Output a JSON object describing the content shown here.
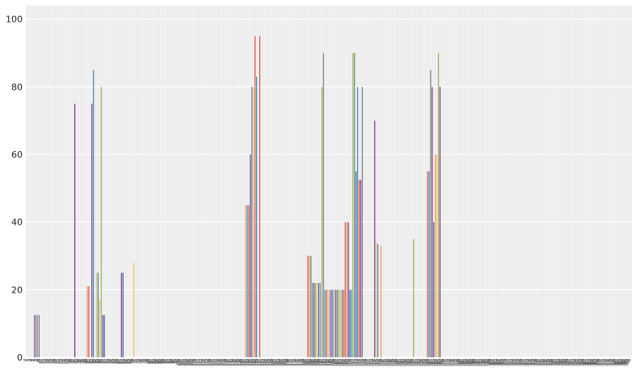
{
  "chart_data": {
    "type": "bar",
    "ylim": [
      0,
      104
    ],
    "yticks": [
      0,
      20,
      40,
      60,
      80,
      100
    ],
    "grid": true,
    "n_categories": 390,
    "colors": [
      "#e24a33",
      "#348abd",
      "#988ed5",
      "#777777",
      "#fbc15e",
      "#8eba42",
      "#ffb5b8",
      "#7b2a87",
      "#2e5aa8",
      "#f09a50"
    ],
    "bars": [
      {
        "x": 5,
        "value": 12.5,
        "color": "#348abd"
      },
      {
        "x": 6,
        "value": 12.5,
        "color": "#e24a33"
      },
      {
        "x": 7,
        "value": 12.5,
        "color": "#988ed5"
      },
      {
        "x": 8,
        "value": 12.5,
        "color": "#777777"
      },
      {
        "x": 31,
        "value": 75,
        "color": "#7b2a87"
      },
      {
        "x": 39,
        "value": 21,
        "color": "#f09a50"
      },
      {
        "x": 40,
        "value": 21,
        "color": "#e24a33"
      },
      {
        "x": 42,
        "value": 75,
        "color": "#7b2a87"
      },
      {
        "x": 43,
        "value": 85,
        "color": "#348abd"
      },
      {
        "x": 45,
        "value": 25,
        "color": "#fbc15e"
      },
      {
        "x": 46,
        "value": 25,
        "color": "#348abd"
      },
      {
        "x": 47,
        "value": 17,
        "color": "#fbc15e"
      },
      {
        "x": 48,
        "value": 80,
        "color": "#8eba42"
      },
      {
        "x": 49,
        "value": 12.5,
        "color": "#7b2a87"
      },
      {
        "x": 50,
        "value": 12.5,
        "color": "#2e5aa8"
      },
      {
        "x": 61,
        "value": 25,
        "color": "#7b2a87"
      },
      {
        "x": 62,
        "value": 25,
        "color": "#2e5aa8"
      },
      {
        "x": 69,
        "value": 28,
        "color": "#fbc15e"
      },
      {
        "x": 141,
        "value": 45,
        "color": "#f09a50"
      },
      {
        "x": 142,
        "value": 45,
        "color": "#348abd"
      },
      {
        "x": 143,
        "value": 45,
        "color": "#e24a33"
      },
      {
        "x": 144,
        "value": 60,
        "color": "#7b2a87"
      },
      {
        "x": 145,
        "value": 80,
        "color": "#348abd"
      },
      {
        "x": 146,
        "value": 80,
        "color": "#fbc15e"
      },
      {
        "x": 147,
        "value": 95,
        "color": "#e24a33"
      },
      {
        "x": 148,
        "value": 83,
        "color": "#348abd"
      },
      {
        "x": 150,
        "value": 95,
        "color": "#e24a33"
      },
      {
        "x": 181,
        "value": 30,
        "color": "#e24a33"
      },
      {
        "x": 182,
        "value": 30,
        "color": "#f09a50"
      },
      {
        "x": 183,
        "value": 30,
        "color": "#777777"
      },
      {
        "x": 184,
        "value": 22,
        "color": "#348abd"
      },
      {
        "x": 185,
        "value": 22,
        "color": "#7b2a87"
      },
      {
        "x": 186,
        "value": 22,
        "color": "#8eba42"
      },
      {
        "x": 187,
        "value": 22,
        "color": "#fbc15e"
      },
      {
        "x": 188,
        "value": 22,
        "color": "#2e5aa8"
      },
      {
        "x": 189,
        "value": 22,
        "color": "#988ed5"
      },
      {
        "x": 190,
        "value": 80,
        "color": "#8eba42"
      },
      {
        "x": 191,
        "value": 90,
        "color": "#777777"
      },
      {
        "x": 192,
        "value": 20,
        "color": "#348abd"
      },
      {
        "x": 193,
        "value": 20,
        "color": "#e24a33"
      },
      {
        "x": 194,
        "value": 20,
        "color": "#fbc15e"
      },
      {
        "x": 195,
        "value": 20,
        "color": "#988ed5"
      },
      {
        "x": 196,
        "value": 20,
        "color": "#7b2a87"
      },
      {
        "x": 197,
        "value": 20,
        "color": "#348abd"
      },
      {
        "x": 198,
        "value": 20,
        "color": "#f09a50"
      },
      {
        "x": 199,
        "value": 20,
        "color": "#2e5aa8"
      },
      {
        "x": 200,
        "value": 20,
        "color": "#777777"
      },
      {
        "x": 201,
        "value": 20,
        "color": "#8eba42"
      },
      {
        "x": 202,
        "value": 20,
        "color": "#fbc15e"
      },
      {
        "x": 203,
        "value": 20,
        "color": "#348abd"
      },
      {
        "x": 204,
        "value": 20,
        "color": "#e24a33"
      },
      {
        "x": 205,
        "value": 40,
        "color": "#e24a33"
      },
      {
        "x": 206,
        "value": 40,
        "color": "#f09a50"
      },
      {
        "x": 207,
        "value": 40,
        "color": "#7b2a87"
      },
      {
        "x": 208,
        "value": 20,
        "color": "#2e5aa8"
      },
      {
        "x": 209,
        "value": 20,
        "color": "#348abd"
      },
      {
        "x": 210,
        "value": 90,
        "color": "#8eba42"
      },
      {
        "x": 211,
        "value": 90,
        "color": "#777777"
      },
      {
        "x": 212,
        "value": 55,
        "color": "#2e5aa8"
      },
      {
        "x": 213,
        "value": 80,
        "color": "#348abd"
      },
      {
        "x": 214,
        "value": 52.5,
        "color": "#e24a33"
      },
      {
        "x": 215,
        "value": 52.5,
        "color": "#7b2a87"
      },
      {
        "x": 216,
        "value": 80,
        "color": "#777777"
      },
      {
        "x": 224,
        "value": 70,
        "color": "#7b2a87"
      },
      {
        "x": 225,
        "value": 34,
        "color": "#fbc15e"
      },
      {
        "x": 226,
        "value": 33.5,
        "color": "#348abd"
      },
      {
        "x": 228,
        "value": 33,
        "color": "#f09a50"
      },
      {
        "x": 249,
        "value": 35,
        "color": "#8eba42"
      },
      {
        "x": 258,
        "value": 55,
        "color": "#e24a33"
      },
      {
        "x": 259,
        "value": 55,
        "color": "#348abd"
      },
      {
        "x": 260,
        "value": 85,
        "color": "#777777"
      },
      {
        "x": 261,
        "value": 80,
        "color": "#7b2a87"
      },
      {
        "x": 262,
        "value": 40,
        "color": "#2e5aa8"
      },
      {
        "x": 263,
        "value": 60,
        "color": "#f09a50"
      },
      {
        "x": 264,
        "value": 60,
        "color": "#fbc15e"
      },
      {
        "x": 265,
        "value": 90,
        "color": "#8eba42"
      },
      {
        "x": 266,
        "value": 80,
        "color": "#7b2a87"
      }
    ]
  }
}
